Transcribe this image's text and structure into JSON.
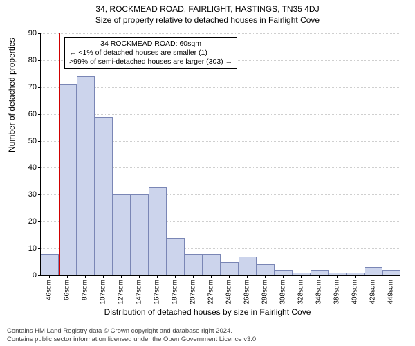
{
  "titles": {
    "main": "34, ROCKMEAD ROAD, FAIRLIGHT, HASTINGS, TN35 4DJ",
    "sub": "Size of property relative to detached houses in Fairlight Cove"
  },
  "ylabel": "Number of detached properties",
  "xlabel": "Distribution of detached houses by size in Fairlight Cove",
  "chart": {
    "type": "histogram",
    "ylim": [
      0,
      90
    ],
    "ytick_step": 10,
    "grid_color": "#cfcfcf",
    "bar_fill": "#ccd4ec",
    "bar_border": "#7a86b5",
    "ref_line_color": "#d00000",
    "ref_line_x_index": 1,
    "categories": [
      "46sqm",
      "66sqm",
      "87sqm",
      "107sqm",
      "127sqm",
      "147sqm",
      "167sqm",
      "187sqm",
      "207sqm",
      "227sqm",
      "248sqm",
      "268sqm",
      "288sqm",
      "308sqm",
      "328sqm",
      "348sqm",
      "389sqm",
      "409sqm",
      "429sqm",
      "449sqm"
    ],
    "values": [
      8,
      71,
      74,
      59,
      30,
      30,
      33,
      14,
      8,
      8,
      5,
      7,
      4,
      2,
      1,
      2,
      1,
      1,
      3,
      2
    ]
  },
  "annotation": {
    "lines": [
      "34 ROCKMEAD ROAD: 60sqm",
      "← <1% of detached houses are smaller (1)",
      ">99% of semi-detached houses are larger (303) →"
    ]
  },
  "footer": {
    "line1": "Contains HM Land Registry data © Crown copyright and database right 2024.",
    "line2": "Contains public sector information licensed under the Open Government Licence v3.0."
  }
}
